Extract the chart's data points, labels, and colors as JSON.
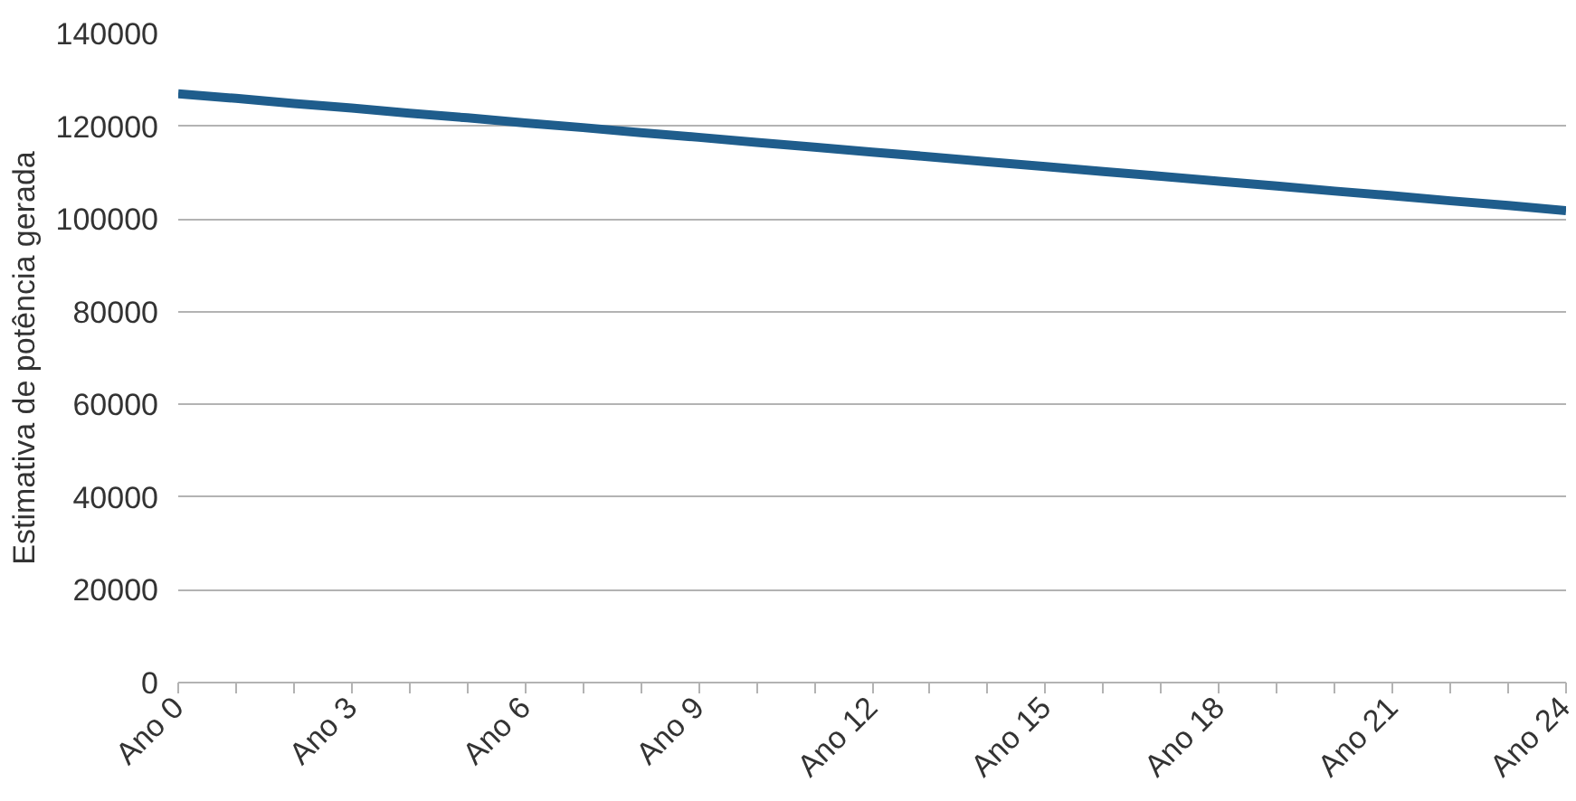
{
  "chart_data": {
    "type": "line",
    "ylabel": "Estimativa de potência gerada",
    "categories": [
      "Ano 0",
      null,
      null,
      "Ano 3",
      null,
      null,
      "Ano 6",
      null,
      null,
      "Ano 9",
      null,
      null,
      "Ano 12",
      null,
      null,
      "Ano 15",
      null,
      null,
      "Ano 18",
      null,
      null,
      "Ano 21",
      null,
      null,
      "Ano 24"
    ],
    "series": [
      {
        "color": "#1f5d8c",
        "values": [
          127000,
          126000,
          124900,
          123900,
          122800,
          121800,
          120700,
          119700,
          118600,
          117600,
          116500,
          115500,
          114400,
          113400,
          112300,
          111300,
          110200,
          109200,
          108100,
          107100,
          106000,
          105000,
          103900,
          102900,
          101800
        ]
      }
    ],
    "ylim": [
      0,
      140000
    ],
    "yticks": [
      0,
      20000,
      40000,
      60000,
      80000,
      100000,
      120000,
      140000
    ],
    "grid": "y",
    "marker": "none",
    "line_style": "solid"
  }
}
